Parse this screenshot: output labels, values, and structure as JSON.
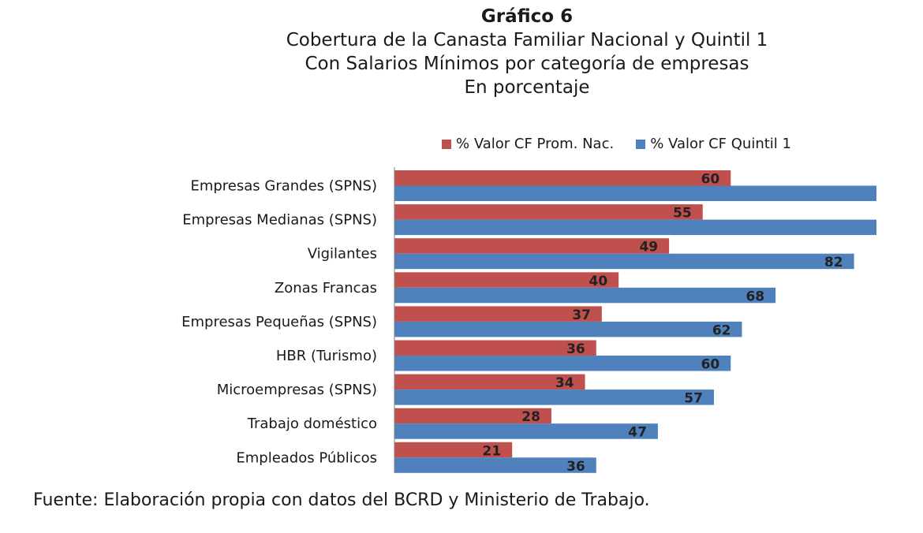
{
  "title": {
    "line1": "Gráfico 6",
    "line2": "Cobertura de la Canasta Familiar Nacional y Quintil 1",
    "line3": "Con Salarios Mínimos por categoría de empresas",
    "line4": "En porcentaje"
  },
  "legend": {
    "item1": "% Valor CF Prom. Nac.",
    "item2": "% Valor CF Quintil 1"
  },
  "source": "Fuente: Elaboración propia con datos del BCRD y Ministerio de Trabajo.",
  "colors": {
    "series1": "#c0504d",
    "series2": "#4f81bd"
  },
  "chart_data": {
    "type": "bar",
    "orientation": "horizontal",
    "categories": [
      "Empresas Grandes (SPNS)",
      "Empresas Medianas (SPNS)",
      "Vigilantes",
      "Zonas Francas",
      "Empresas Pequeñas (SPNS)",
      "HBR (Turismo)",
      "Microempresas (SPNS)",
      "Trabajo doméstico",
      "Empleados Públicos"
    ],
    "series": [
      {
        "name": "% Valor CF Prom. Nac.",
        "values": [
          60,
          55,
          49,
          40,
          37,
          36,
          34,
          28,
          21
        ],
        "labels": [
          "60",
          "55",
          "49",
          "40",
          "37",
          "36",
          "34",
          "28",
          "21"
        ]
      },
      {
        "name": "% Valor CF Quintil 1",
        "values": [
          86,
          86,
          82,
          68,
          62,
          60,
          57,
          47,
          36
        ],
        "labels": [
          "",
          "",
          "82",
          "68",
          "62",
          "60",
          "57",
          "47",
          "36"
        ]
      }
    ],
    "xlim": [
      0,
      86
    ],
    "legend_position": "top",
    "grid": false
  }
}
